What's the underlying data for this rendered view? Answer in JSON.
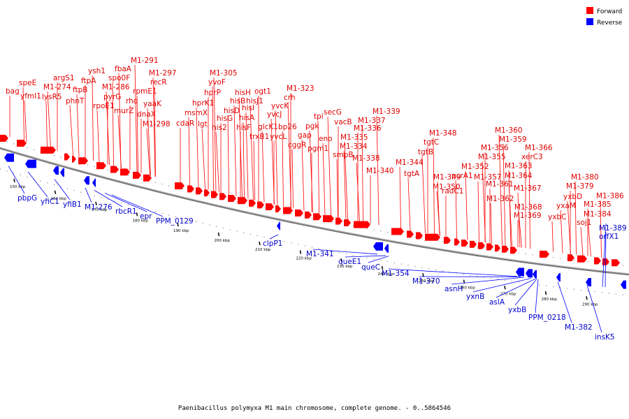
{
  "caption": "Paenibacillus polymyxa M1 main chromosome, complete genome. - 0..5864546",
  "legend": [
    {
      "label": "Forward",
      "color": "#ff0000"
    },
    {
      "label": "Reverse",
      "color": "#0000ff"
    }
  ],
  "colors": {
    "forward": "#ff0000",
    "reverse": "#0000ff",
    "axis": "#888888"
  },
  "ticks": [
    "150 kbp",
    "160 kbp",
    "170 kbp",
    "180 kbp",
    "190 kbp",
    "200 kbp",
    "210 kbp",
    "220 kbp",
    "230 kbp",
    "240 kbp",
    "250 kbp",
    "260 kbp",
    "270 kbp",
    "280 kbp",
    "290 kbp"
  ],
  "forward_labels": [
    "bag",
    "speE",
    "yfmI1",
    "M1-274",
    "argS1",
    "lysR5",
    "ftpB",
    "phnT",
    "ftpA",
    "ysh1",
    "rpoE1",
    "M1-286",
    "pyrG",
    "spo0F",
    "fbaA",
    "murZ",
    "rho",
    "rpmE1",
    "M1-291",
    "yaaK",
    "dnaX",
    "recR",
    "M1-297",
    "M1-298",
    "cdaR",
    "msmX",
    "hprK1",
    "lgt",
    "hprP",
    "yvoF",
    "M1-305",
    "his2",
    "hisG",
    "hisD",
    "hisB",
    "hisH",
    "hisF",
    "hisA",
    "hisI",
    "hisJ1",
    "ogt1",
    "trxB1",
    "glcK1",
    "yvcJ",
    "yvcL",
    "bp26",
    "yvcK",
    "crh",
    "M1-323",
    "cggR",
    "gap",
    "pgk",
    "pgm1",
    "tpi",
    "eno",
    "secG",
    "vacB",
    "smpB",
    "M1-334",
    "M1-335",
    "M1-336",
    "M1-337",
    "M1-339",
    "M1-338",
    "M1-340",
    "M1-344",
    "tgtA",
    "tgtB",
    "tgtC",
    "M1-348",
    "M1-349",
    "M1-350",
    "radC1",
    "pcrA1",
    "M1-352",
    "M1-355",
    "M1-356",
    "M1-357",
    "M1-359",
    "M1-360",
    "M1-361",
    "M1-362",
    "M1-363",
    "M1-364",
    "xerC3",
    "M1-366",
    "M1-367",
    "M1-368",
    "M1-369",
    "yxbC",
    "yxaM",
    "yxbD",
    "M1-379",
    "M1-380",
    "soj1",
    "M1-384",
    "M1-385",
    "M1-386"
  ],
  "reverse_labels": [
    "pbpG",
    "yfiC1",
    "yfiB1",
    "M1-276",
    "rbcR1",
    "epr",
    "PPM_0129",
    "clpP1",
    "M1-341",
    "queE1",
    "queC",
    "M1-354",
    "M1-370",
    "asnH",
    "yxnB",
    "aslA",
    "yxbB",
    "PPM_0218",
    "M1-382",
    "insK5",
    "M1-389",
    "orfX1"
  ]
}
